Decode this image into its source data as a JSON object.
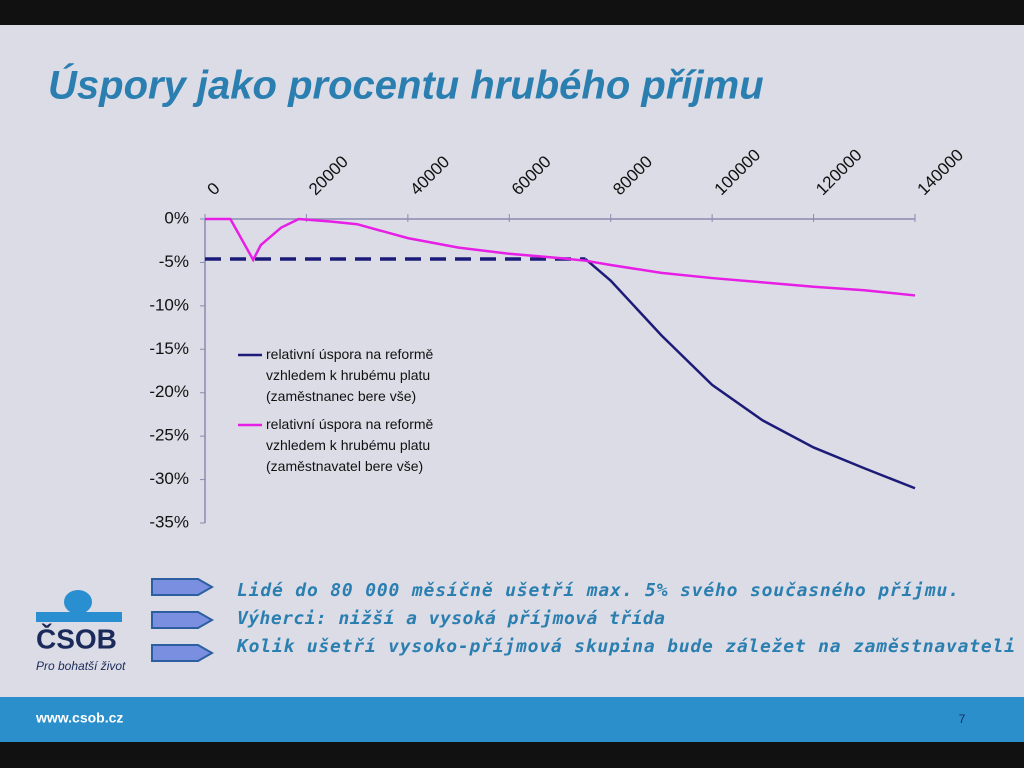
{
  "slide": {
    "title": "Úspory jako procentu hrubého příjmu",
    "bullets": [
      "Lidé do 80 000 měsíčně ušetří max. 5% svého současného příjmu.",
      "Výherci: nižší a vysoká příjmová třída",
      "Kolik ušetří vysoko-příjmová skupina bude záležet na zaměstnavateli"
    ],
    "logo": {
      "name": "ČSOB",
      "tagline": "Pro bohatší život"
    },
    "footer": {
      "url": "www.csob.cz",
      "page": "7"
    }
  },
  "chart_data": {
    "type": "line",
    "x": [
      0,
      5000,
      9500,
      11000,
      15000,
      18500,
      25000,
      30000,
      40000,
      50000,
      60000,
      70000,
      75000,
      80000,
      90000,
      100000,
      110000,
      120000,
      130000,
      140000
    ],
    "series": [
      {
        "name": "relativní úspora na reformě vzhledem k hrubému platu (zaměstnanec bere vše)",
        "color": "#1c1c78",
        "dash_x_max": 75000,
        "values": [
          -4.6,
          -4.6,
          -4.6,
          -4.6,
          -4.6,
          -4.6,
          -4.6,
          -4.6,
          -4.6,
          -4.6,
          -4.6,
          -4.6,
          -4.6,
          -7.1,
          -13.4,
          -19.1,
          -23.2,
          -26.3,
          -28.7,
          -31
        ]
      },
      {
        "name": "relativní úspora na reformě vzhledem k hrubému platu (zaměstnavatel bere vše)",
        "color": "#e61ee6",
        "values": [
          0,
          0,
          -4.7,
          -3.0,
          -1.0,
          0,
          -0.3,
          -0.6,
          -2.2,
          -3.3,
          -4.0,
          -4.5,
          -4.8,
          -5.3,
          -6.2,
          -6.8,
          -7.3,
          -7.8,
          -8.2,
          -8.8
        ]
      }
    ],
    "xlim": [
      0,
      140000
    ],
    "xticks": [
      0,
      20000,
      40000,
      60000,
      80000,
      100000,
      120000,
      140000
    ],
    "x_axis_position": "top",
    "ylim": [
      -35,
      0
    ],
    "yticks": [
      {
        "value": 0,
        "label": "0%"
      },
      {
        "value": -5,
        "label": "-5%"
      },
      {
        "value": -10,
        "label": "-10%"
      },
      {
        "value": -15,
        "label": "-15%"
      },
      {
        "value": -20,
        "label": "-20%"
      },
      {
        "value": -25,
        "label": "-25%"
      },
      {
        "value": -30,
        "label": "-30%"
      },
      {
        "value": -35,
        "label": "-35%"
      }
    ]
  }
}
